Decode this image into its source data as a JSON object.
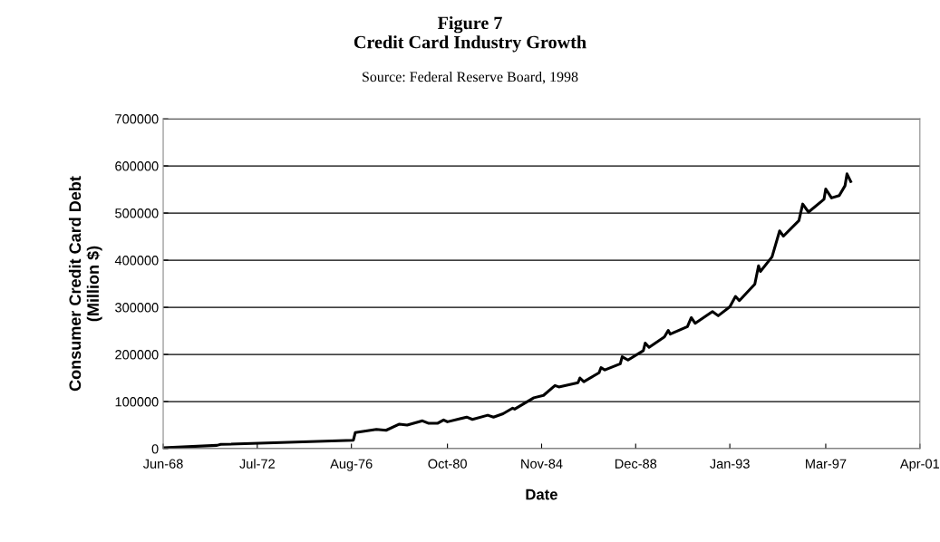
{
  "chart_data": {
    "type": "line",
    "title": "Figure 7\nCredit Card Industry Growth",
    "subtitle": "Source: Federal Reserve Board, 1998",
    "xlabel": "Date",
    "ylabel": "Consumer Credit Card Debt\n(Million $)",
    "x": [
      "1968-06",
      "1970-10",
      "1970-12",
      "1976-09",
      "1976-10",
      "1977-09",
      "1978-02",
      "1978-09",
      "1979-01",
      "1979-09",
      "1979-12",
      "1980-05",
      "1980-08",
      "1980-10",
      "1981-08",
      "1981-11",
      "1982-07",
      "1982-10",
      "1983-03",
      "1983-08",
      "1983-09",
      "1984-07",
      "1984-12",
      "1985-06",
      "1985-08",
      "1986-06",
      "1986-07",
      "1986-09",
      "1987-05",
      "1987-06",
      "1987-08",
      "1988-04",
      "1988-05",
      "1988-08",
      "1989-04",
      "1989-05",
      "1989-07",
      "1990-03",
      "1990-05",
      "1990-06",
      "1991-03",
      "1991-05",
      "1991-07",
      "1992-04",
      "1992-07",
      "1993-01",
      "1993-04",
      "1993-06",
      "1994-02",
      "1994-04",
      "1994-05",
      "1994-11",
      "1995-03",
      "1995-05",
      "1996-01",
      "1996-03",
      "1996-06",
      "1997-02",
      "1997-03",
      "1997-06",
      "1997-10",
      "1998-01",
      "1998-02",
      "1998-04"
    ],
    "series": [
      {
        "color": "#000000",
        "values": [
          2000,
          7000,
          9000,
          18000,
          34000,
          41000,
          39000,
          52000,
          50000,
          59000,
          54000,
          54000,
          61000,
          57000,
          67000,
          62000,
          71000,
          67000,
          74000,
          86000,
          84000,
          108000,
          113000,
          134000,
          131000,
          140000,
          150000,
          142000,
          161000,
          172000,
          167000,
          180000,
          195000,
          188000,
          208000,
          224000,
          215000,
          237000,
          251000,
          243000,
          259000,
          278000,
          266000,
          291000,
          282000,
          301000,
          323000,
          314000,
          349000,
          388000,
          376000,
          407000,
          462000,
          451000,
          484000,
          519000,
          502000,
          529000,
          551000,
          532000,
          537000,
          558000,
          583000,
          567000
        ]
      }
    ],
    "xlim": [
      "1968-06",
      "2001-04"
    ],
    "xticks": [
      {
        "value": "1968-06",
        "label": "Jun-68"
      },
      {
        "value": "1972-07",
        "label": "Jul-72"
      },
      {
        "value": "1976-08",
        "label": "Aug-76"
      },
      {
        "value": "1980-10",
        "label": "Oct-80"
      },
      {
        "value": "1984-11",
        "label": "Nov-84"
      },
      {
        "value": "1988-12",
        "label": "Dec-88"
      },
      {
        "value": "1993-01",
        "label": "Jan-93"
      },
      {
        "value": "1997-03",
        "label": "Mar-97"
      },
      {
        "value": "2001-04",
        "label": "Apr-01"
      }
    ],
    "ylim": [
      0,
      700000
    ],
    "yticks": [
      0,
      100000,
      200000,
      300000,
      400000,
      500000,
      600000,
      700000
    ],
    "grid": "y",
    "legend": false,
    "marker": "none",
    "line_style": "solid"
  }
}
